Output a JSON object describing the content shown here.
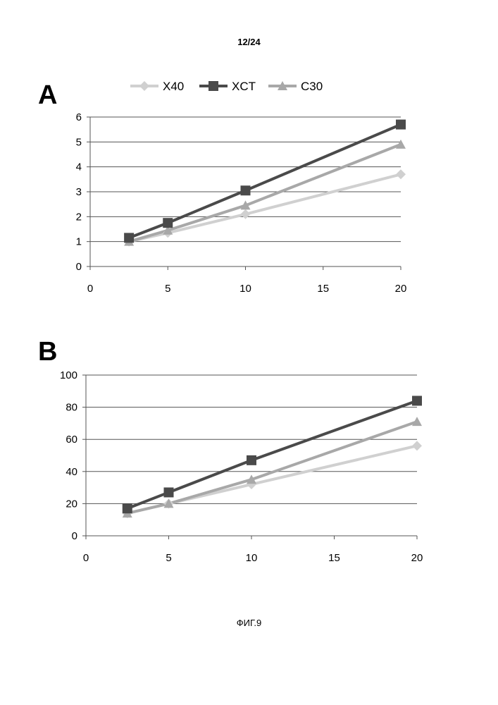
{
  "page_number": "12/24",
  "figure_caption": "ФИГ.9",
  "legend": [
    {
      "name": "X40",
      "color": "#d0d0d0",
      "marker": "diamond"
    },
    {
      "name": "XCT",
      "color": "#4a4a4a",
      "marker": "square"
    },
    {
      "name": "C30",
      "color": "#a8a8a8",
      "marker": "triangle"
    }
  ],
  "chart_data": [
    {
      "type": "line",
      "panel_label": "A",
      "xlim": [
        0,
        20
      ],
      "ylim": [
        0,
        6
      ],
      "xticks": [
        0,
        5,
        10,
        15,
        20
      ],
      "yticks": [
        0,
        1,
        2,
        3,
        4,
        5,
        6
      ],
      "grid": true,
      "legend_position": "top",
      "x": [
        2.5,
        5,
        10,
        20
      ],
      "series": [
        {
          "name": "X40",
          "color": "#d0d0d0",
          "marker": "diamond",
          "values": [
            1.0,
            1.35,
            2.1,
            3.7
          ]
        },
        {
          "name": "C30",
          "color": "#a8a8a8",
          "marker": "triangle",
          "values": [
            1.0,
            1.45,
            2.45,
            4.9
          ]
        },
        {
          "name": "XCT",
          "color": "#4a4a4a",
          "marker": "square",
          "values": [
            1.15,
            1.75,
            3.05,
            5.7
          ]
        }
      ]
    },
    {
      "type": "line",
      "panel_label": "B",
      "xlim": [
        0,
        20
      ],
      "ylim": [
        0,
        100
      ],
      "xticks": [
        0,
        5,
        10,
        15,
        20
      ],
      "yticks": [
        0,
        20,
        40,
        60,
        80,
        100
      ],
      "grid": true,
      "legend_position": "none",
      "x": [
        2.5,
        5,
        10,
        20
      ],
      "series": [
        {
          "name": "X40",
          "color": "#d0d0d0",
          "marker": "diamond",
          "values": [
            14,
            20,
            32,
            56
          ]
        },
        {
          "name": "C30",
          "color": "#a8a8a8",
          "marker": "triangle",
          "values": [
            14,
            20,
            35,
            71
          ]
        },
        {
          "name": "XCT",
          "color": "#4a4a4a",
          "marker": "square",
          "values": [
            17,
            27,
            47,
            84
          ]
        }
      ]
    }
  ]
}
